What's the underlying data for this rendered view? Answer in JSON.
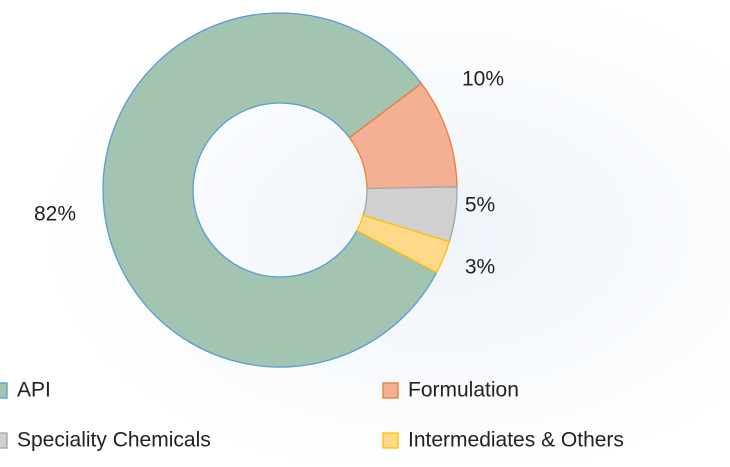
{
  "chart_data": {
    "type": "donut",
    "categories": [
      "API",
      "Formulation",
      "Speciality Chemicals",
      "Intermediates & Others"
    ],
    "values": [
      82,
      10,
      5,
      3
    ],
    "value_labels": [
      "82%",
      "10%",
      "5%",
      "3%"
    ],
    "colors": [
      "#a3c4b0",
      "#f4b095",
      "#d0d0d0",
      "#ffd98a"
    ],
    "legend": "bottom"
  }
}
